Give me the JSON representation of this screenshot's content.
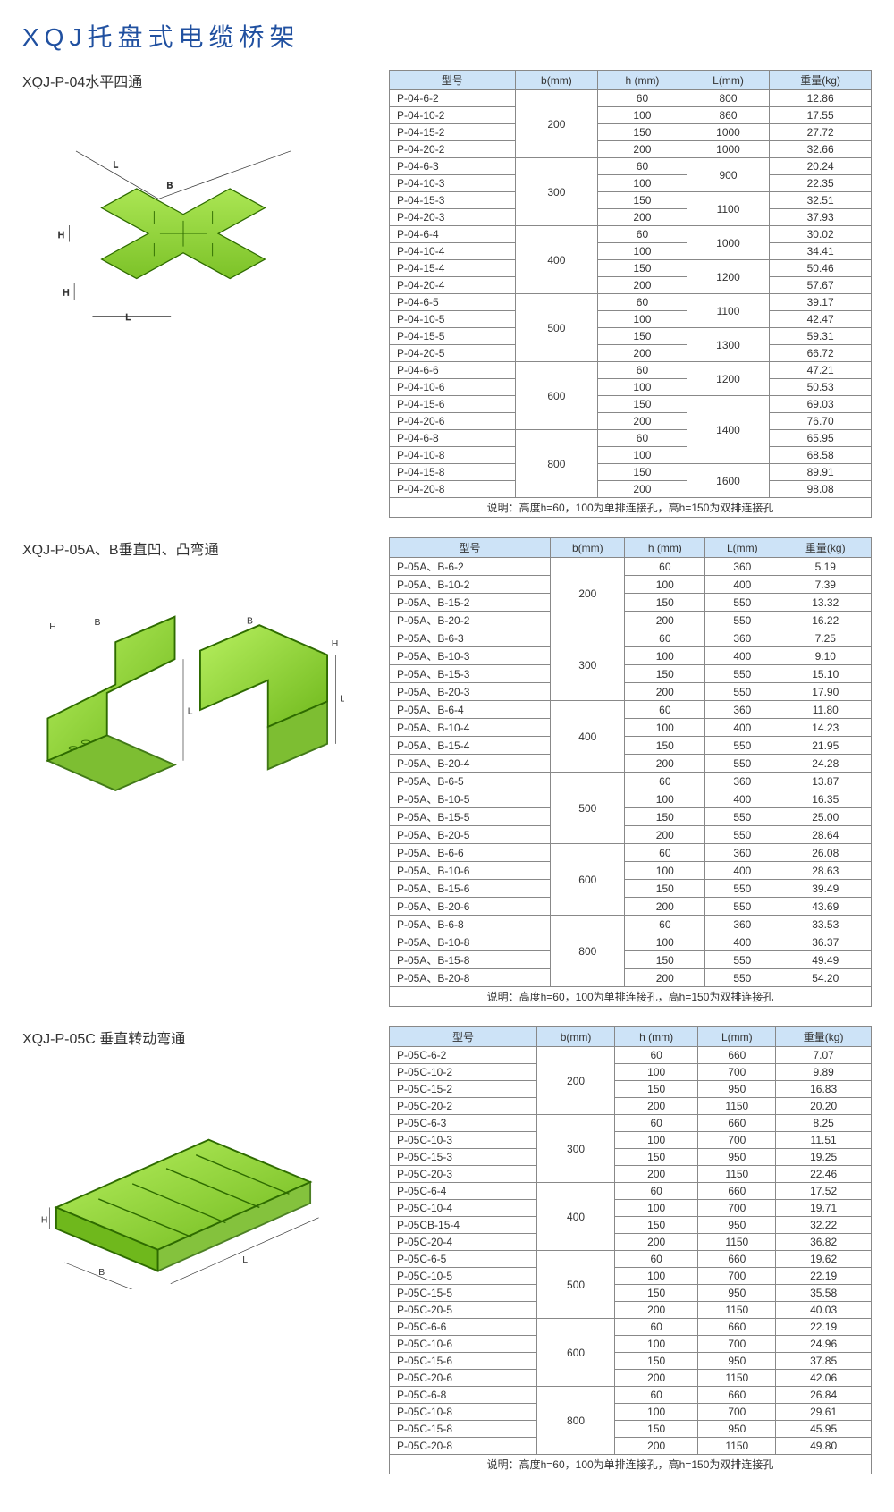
{
  "page_title": "XQJ托盘式电缆桥架",
  "colors": {
    "title": "#2050a0",
    "header_bg": "#cde3f7",
    "border": "#888888",
    "diagram_fill_light": "#b8f060",
    "diagram_fill_dark": "#6fb81c",
    "diagram_stroke": "#2e6b00"
  },
  "headers": [
    "型号",
    "b(mm)",
    "h (mm)",
    "L(mm)",
    "重量(kg)"
  ],
  "note_text": "说明：高度h=60，100为单排连接孔，高h=150为双排连接孔",
  "sections": [
    {
      "label": "XQJ-P-04水平四通",
      "diagram": "cross",
      "groups": [
        {
          "b": "200",
          "L_pairs": [
            [
              "800",
              "860"
            ],
            [
              "1000",
              "1000"
            ]
          ],
          "rows": [
            {
              "model": "P-04-6-2",
              "h": "60",
              "L": "800",
              "w": "12.86"
            },
            {
              "model": "P-04-10-2",
              "h": "100",
              "L": "860",
              "w": "17.55"
            },
            {
              "model": "P-04-15-2",
              "h": "150",
              "L": "1000",
              "w": "27.72"
            },
            {
              "model": "P-04-20-2",
              "h": "200",
              "L": "1000",
              "w": "32.66"
            }
          ]
        },
        {
          "b": "300",
          "rows": [
            {
              "model": "P-04-6-3",
              "h": "60",
              "L": "900",
              "w": "20.24",
              "Lspan": 2
            },
            {
              "model": "P-04-10-3",
              "h": "100",
              "w": "22.35"
            },
            {
              "model": "P-04-15-3",
              "h": "150",
              "L": "1100",
              "w": "32.51",
              "Lspan": 2
            },
            {
              "model": "P-04-20-3",
              "h": "200",
              "w": "37.93"
            }
          ]
        },
        {
          "b": "400",
          "rows": [
            {
              "model": "P-04-6-4",
              "h": "60",
              "L": "1000",
              "w": "30.02",
              "Lspan": 2
            },
            {
              "model": "P-04-10-4",
              "h": "100",
              "w": "34.41"
            },
            {
              "model": "P-04-15-4",
              "h": "150",
              "L": "1200",
              "w": "50.46",
              "Lspan": 2
            },
            {
              "model": "P-04-20-4",
              "h": "200",
              "w": "57.67"
            }
          ]
        },
        {
          "b": "500",
          "rows": [
            {
              "model": "P-04-6-5",
              "h": "60",
              "L": "1100",
              "w": "39.17",
              "Lspan": 2
            },
            {
              "model": "P-04-10-5",
              "h": "100",
              "w": "42.47"
            },
            {
              "model": "P-04-15-5",
              "h": "150",
              "L": "1300",
              "w": "59.31",
              "Lspan": 2
            },
            {
              "model": "P-04-20-5",
              "h": "200",
              "w": "66.72"
            }
          ]
        },
        {
          "b": "600",
          "rows": [
            {
              "model": "P-04-6-6",
              "h": "60",
              "L": "1200",
              "w": "47.21",
              "Lspan": 2
            },
            {
              "model": "P-04-10-6",
              "h": "100",
              "w": "50.53"
            },
            {
              "model": "P-04-15-6",
              "h": "150",
              "L": "1400",
              "w": "69.03",
              "Lspan": 4
            },
            {
              "model": "P-04-20-6",
              "h": "200",
              "w": "76.70"
            }
          ]
        },
        {
          "b": "800",
          "rows": [
            {
              "model": "P-04-6-8",
              "h": "60",
              "w": "65.95"
            },
            {
              "model": "P-04-10-8",
              "h": "100",
              "w": "68.58"
            },
            {
              "model": "P-04-15-8",
              "h": "150",
              "L": "1600",
              "w": "89.91",
              "Lspan": 2
            },
            {
              "model": "P-04-20-8",
              "h": "200",
              "w": "98.08"
            }
          ]
        }
      ]
    },
    {
      "label": "XQJ-P-05A、B垂直凹、凸弯通",
      "diagram": "bend",
      "groups": [
        {
          "b": "200",
          "rows": [
            {
              "model": "P-05A、B-6-2",
              "h": "60",
              "L": "360",
              "w": "5.19"
            },
            {
              "model": "P-05A、B-10-2",
              "h": "100",
              "L": "400",
              "w": "7.39"
            },
            {
              "model": "P-05A、B-15-2",
              "h": "150",
              "L": "550",
              "w": "13.32"
            },
            {
              "model": "P-05A、B-20-2",
              "h": "200",
              "L": "550",
              "w": "16.22"
            }
          ]
        },
        {
          "b": "300",
          "rows": [
            {
              "model": "P-05A、B-6-3",
              "h": "60",
              "L": "360",
              "w": "7.25"
            },
            {
              "model": "P-05A、B-10-3",
              "h": "100",
              "L": "400",
              "w": "9.10"
            },
            {
              "model": "P-05A、B-15-3",
              "h": "150",
              "L": "550",
              "w": "15.10"
            },
            {
              "model": "P-05A、B-20-3",
              "h": "200",
              "L": "550",
              "w": "17.90"
            }
          ]
        },
        {
          "b": "400",
          "rows": [
            {
              "model": "P-05A、B-6-4",
              "h": "60",
              "L": "360",
              "w": "11.80"
            },
            {
              "model": "P-05A、B-10-4",
              "h": "100",
              "L": "400",
              "w": "14.23"
            },
            {
              "model": "P-05A、B-15-4",
              "h": "150",
              "L": "550",
              "w": "21.95"
            },
            {
              "model": "P-05A、B-20-4",
              "h": "200",
              "L": "550",
              "w": "24.28"
            }
          ]
        },
        {
          "b": "500",
          "rows": [
            {
              "model": "P-05A、B-6-5",
              "h": "60",
              "L": "360",
              "w": "13.87"
            },
            {
              "model": "P-05A、B-10-5",
              "h": "100",
              "L": "400",
              "w": "16.35"
            },
            {
              "model": "P-05A、B-15-5",
              "h": "150",
              "L": "550",
              "w": "25.00"
            },
            {
              "model": "P-05A、B-20-5",
              "h": "200",
              "L": "550",
              "w": "28.64"
            }
          ]
        },
        {
          "b": "600",
          "rows": [
            {
              "model": "P-05A、B-6-6",
              "h": "60",
              "L": "360",
              "w": "26.08"
            },
            {
              "model": "P-05A、B-10-6",
              "h": "100",
              "L": "400",
              "w": "28.63"
            },
            {
              "model": "P-05A、B-15-6",
              "h": "150",
              "L": "550",
              "w": "39.49"
            },
            {
              "model": "P-05A、B-20-6",
              "h": "200",
              "L": "550",
              "w": "43.69"
            }
          ]
        },
        {
          "b": "800",
          "rows": [
            {
              "model": "P-05A、B-6-8",
              "h": "60",
              "L": "360",
              "w": "33.53"
            },
            {
              "model": "P-05A、B-10-8",
              "h": "100",
              "L": "400",
              "w": "36.37"
            },
            {
              "model": "P-05A、B-15-8",
              "h": "150",
              "L": "550",
              "w": "49.49"
            },
            {
              "model": "P-05A、B-20-8",
              "h": "200",
              "L": "550",
              "w": "54.20"
            }
          ]
        }
      ]
    },
    {
      "label": "XQJ-P-05C 垂直转动弯通",
      "diagram": "flat",
      "groups": [
        {
          "b": "200",
          "rows": [
            {
              "model": "P-05C-6-2",
              "h": "60",
              "L": "660",
              "w": "7.07"
            },
            {
              "model": "P-05C-10-2",
              "h": "100",
              "L": "700",
              "w": "9.89"
            },
            {
              "model": "P-05C-15-2",
              "h": "150",
              "L": "950",
              "w": "16.83"
            },
            {
              "model": "P-05C-20-2",
              "h": "200",
              "L": "1150",
              "w": "20.20"
            }
          ]
        },
        {
          "b": "300",
          "rows": [
            {
              "model": "P-05C-6-3",
              "h": "60",
              "L": "660",
              "w": "8.25"
            },
            {
              "model": "P-05C-10-3",
              "h": "100",
              "L": "700",
              "w": "11.51"
            },
            {
              "model": "P-05C-15-3",
              "h": "150",
              "L": "950",
              "w": "19.25"
            },
            {
              "model": "P-05C-20-3",
              "h": "200",
              "L": "1150",
              "w": "22.46"
            }
          ]
        },
        {
          "b": "400",
          "rows": [
            {
              "model": "P-05C-6-4",
              "h": "60",
              "L": "660",
              "w": "17.52"
            },
            {
              "model": "P-05C-10-4",
              "h": "100",
              "L": "700",
              "w": "19.71"
            },
            {
              "model": "P-05CB-15-4",
              "h": "150",
              "L": "950",
              "w": "32.22"
            },
            {
              "model": "P-05C-20-4",
              "h": "200",
              "L": "1150",
              "w": "36.82"
            }
          ]
        },
        {
          "b": "500",
          "rows": [
            {
              "model": "P-05C-6-5",
              "h": "60",
              "L": "660",
              "w": "19.62"
            },
            {
              "model": "P-05C-10-5",
              "h": "100",
              "L": "700",
              "w": "22.19"
            },
            {
              "model": "P-05C-15-5",
              "h": "150",
              "L": "950",
              "w": "35.58"
            },
            {
              "model": "P-05C-20-5",
              "h": "200",
              "L": "1150",
              "w": "40.03"
            }
          ]
        },
        {
          "b": "600",
          "rows": [
            {
              "model": "P-05C-6-6",
              "h": "60",
              "L": "660",
              "w": "22.19"
            },
            {
              "model": "P-05C-10-6",
              "h": "100",
              "L": "700",
              "w": "24.96"
            },
            {
              "model": "P-05C-15-6",
              "h": "150",
              "L": "950",
              "w": "37.85"
            },
            {
              "model": "P-05C-20-6",
              "h": "200",
              "L": "1150",
              "w": "42.06"
            }
          ]
        },
        {
          "b": "800",
          "rows": [
            {
              "model": "P-05C-6-8",
              "h": "60",
              "L": "660",
              "w": "26.84"
            },
            {
              "model": "P-05C-10-8",
              "h": "100",
              "L": "700",
              "w": "29.61"
            },
            {
              "model": "P-05C-15-8",
              "h": "150",
              "L": "950",
              "w": "45.95"
            },
            {
              "model": "P-05C-20-8",
              "h": "200",
              "L": "1150",
              "w": "49.80"
            }
          ]
        }
      ]
    }
  ]
}
